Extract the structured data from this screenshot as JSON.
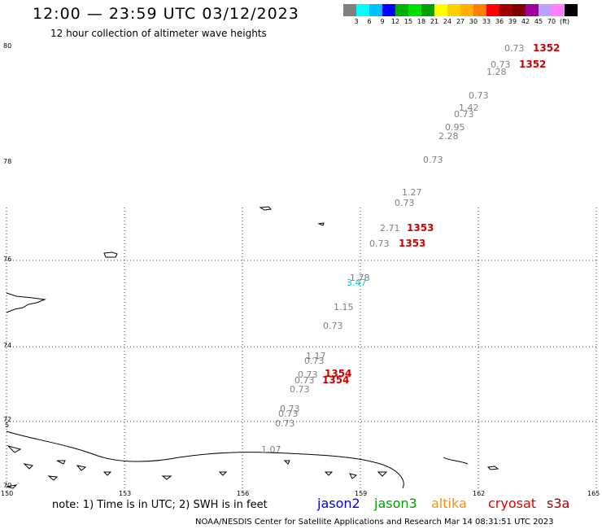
{
  "header": {
    "title": "12:00 — 23:59 UTC 03/12/2023",
    "subtitle": "12 hour collection of altimeter wave heights"
  },
  "scale": {
    "colors": [
      "#808080",
      "#00ffff",
      "#00bfff",
      "#0000ff",
      "#00b000",
      "#00e000",
      "#00a000",
      "#ffff00",
      "#ffd000",
      "#ffb000",
      "#ff8000",
      "#ff0000",
      "#a00000",
      "#800000",
      "#a000a0",
      "#c0a0ff",
      "#ff80ff",
      "#000000"
    ],
    "labels": [
      "3",
      "6",
      "9",
      "12",
      "15",
      "18",
      "21",
      "24",
      "27",
      "30",
      "33",
      "36",
      "39",
      "42",
      "45",
      "70",
      "(ft)"
    ]
  },
  "axes": {
    "y_labels": [
      "80",
      "78",
      "76",
      "74",
      "72",
      "70",
      "5"
    ],
    "x_labels": [
      "150",
      "153",
      "156",
      "159",
      "162",
      "165"
    ]
  },
  "observations": [
    {
      "text": "0.73",
      "color": "#808080"
    },
    {
      "text": "1352",
      "color": "#d00000"
    },
    {
      "text": "0.73",
      "color": "#808080"
    },
    {
      "text": "1352",
      "color": "#d00000"
    },
    {
      "text": "1.28",
      "color": "#808080"
    },
    {
      "text": "0.73",
      "color": "#808080"
    },
    {
      "text": "1.42",
      "color": "#808080"
    },
    {
      "text": "0.73",
      "color": "#808080"
    },
    {
      "text": "0.95",
      "color": "#808080"
    },
    {
      "text": "2.28",
      "color": "#808080"
    },
    {
      "text": "0.73",
      "color": "#808080"
    },
    {
      "text": "1.27",
      "color": "#808080"
    },
    {
      "text": "0.73",
      "color": "#808080"
    },
    {
      "text": "2.71",
      "color": "#808080"
    },
    {
      "text": "1353",
      "color": "#d00000"
    },
    {
      "text": "0.73",
      "color": "#808080"
    },
    {
      "text": "1353",
      "color": "#d00000"
    },
    {
      "text": "1.78",
      "color": "#808080"
    },
    {
      "text": "3.47",
      "color": "#00c8e0"
    },
    {
      "text": "1.15",
      "color": "#808080"
    },
    {
      "text": "0.73",
      "color": "#808080"
    },
    {
      "text": "1.17",
      "color": "#808080"
    },
    {
      "text": "0.73",
      "color": "#808080"
    },
    {
      "text": "0.73",
      "color": "#808080"
    },
    {
      "text": "1354",
      "color": "#d00000"
    },
    {
      "text": "0.73",
      "color": "#808080"
    },
    {
      "text": "1354",
      "color": "#d00000"
    },
    {
      "text": "0.73",
      "color": "#808080"
    },
    {
      "text": "0.73",
      "color": "#808080"
    },
    {
      "text": "0.73",
      "color": "#808080"
    },
    {
      "text": "0.73",
      "color": "#808080"
    },
    {
      "text": "1.07",
      "color": "#808080"
    }
  ],
  "legend": {
    "note": "note: 1) Time is in UTC; 2) SWH is in feet",
    "satellites": [
      {
        "name": "jason2",
        "color": "#0000e0"
      },
      {
        "name": "jason3",
        "color": "#00a000"
      },
      {
        "name": "altika",
        "color": "#ff9000"
      },
      {
        "name": "cryosat",
        "color": "#e00000"
      },
      {
        "name": "s3a",
        "color": "#a00000"
      }
    ]
  },
  "footer": "NOAA/NESDIS Center for Satellite Applications and Research     Mar 14 08:31:51 UTC 2023"
}
